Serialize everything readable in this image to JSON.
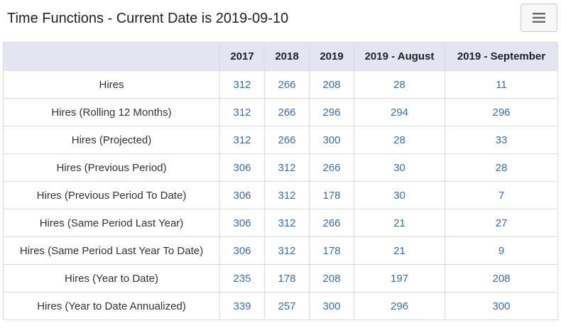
{
  "header": {
    "title": "Time Functions - Current Date is 2019-09-10",
    "menu_icon": "hamburger-icon"
  },
  "table": {
    "columns": [
      "",
      "2017",
      "2018",
      "2019",
      "2019 - August",
      "2019 - September"
    ],
    "rows": [
      {
        "label": "Hires",
        "values": [
          "312",
          "266",
          "208",
          "28",
          "11"
        ]
      },
      {
        "label": "Hires (Rolling 12 Months)",
        "values": [
          "312",
          "266",
          "296",
          "294",
          "296"
        ]
      },
      {
        "label": "Hires (Projected)",
        "values": [
          "312",
          "266",
          "300",
          "28",
          "33"
        ]
      },
      {
        "label": "Hires (Previous Period)",
        "values": [
          "306",
          "312",
          "266",
          "30",
          "28"
        ]
      },
      {
        "label": "Hires (Previous Period To Date)",
        "values": [
          "306",
          "312",
          "178",
          "30",
          "7"
        ]
      },
      {
        "label": "Hires (Same Period Last Year)",
        "values": [
          "306",
          "312",
          "266",
          "21",
          "27"
        ]
      },
      {
        "label": "Hires (Same Period Last Year To Date)",
        "values": [
          "306",
          "312",
          "178",
          "21",
          "9"
        ]
      },
      {
        "label": "Hires (Year to Date)",
        "values": [
          "235",
          "178",
          "208",
          "197",
          "208"
        ]
      },
      {
        "label": "Hires (Year to Date Annualized)",
        "values": [
          "339",
          "257",
          "300",
          "296",
          "300"
        ]
      }
    ]
  },
  "colors": {
    "header_bg": "#e2e6f3",
    "value_text": "#3b6ea5",
    "border": "#dcdcdc"
  }
}
